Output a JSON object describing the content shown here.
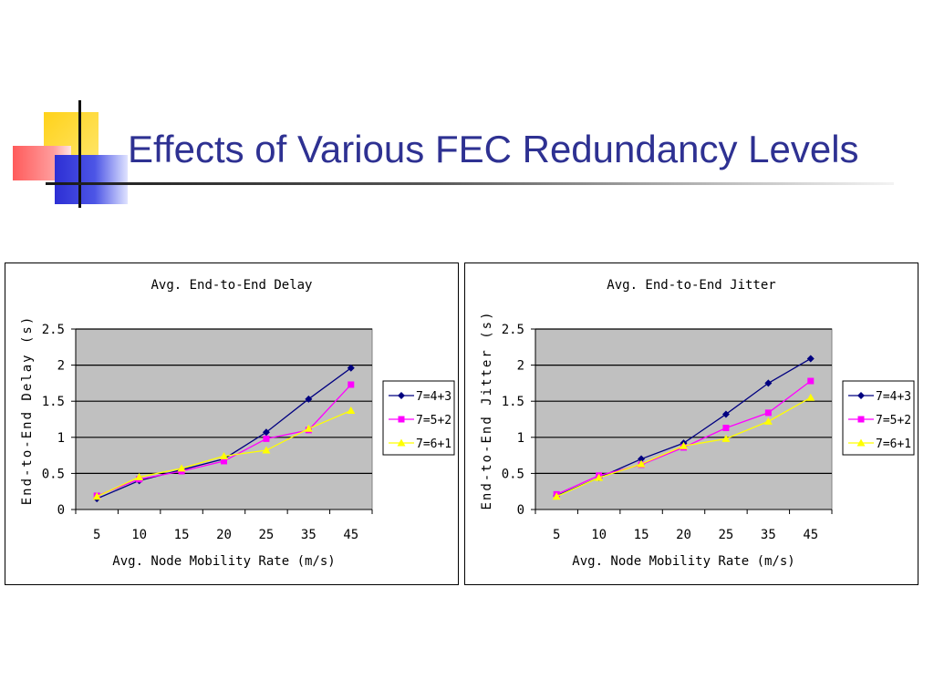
{
  "slide": {
    "title": "Effects of Various FEC Redundancy Levels"
  },
  "chart_data": [
    {
      "type": "line",
      "title": "Avg. End-to-End Delay",
      "xlabel": "Avg. Node Mobility Rate (m/s)",
      "ylabel": "End-to-End Delay (s)",
      "categories": [
        "5",
        "10",
        "15",
        "20",
        "25",
        "35",
        "45"
      ],
      "yticks": [
        "0",
        "0.5",
        "1",
        "1.5",
        "2",
        "2.5"
      ],
      "ylim": [
        0,
        2.5
      ],
      "grid": true,
      "legend": "right",
      "series": [
        {
          "name": "7=4+3",
          "color": "#000080",
          "marker": "diamond",
          "values": [
            0.15,
            0.4,
            0.55,
            0.7,
            1.07,
            1.53,
            1.96
          ]
        },
        {
          "name": "7=5+2",
          "color": "#ff00ff",
          "marker": "square",
          "values": [
            0.19,
            0.42,
            0.53,
            0.67,
            0.98,
            1.1,
            1.73
          ]
        },
        {
          "name": "7=6+1",
          "color": "#ffff00",
          "marker": "triangle",
          "values": [
            0.18,
            0.45,
            0.57,
            0.74,
            0.82,
            1.12,
            1.37
          ]
        }
      ]
    },
    {
      "type": "line",
      "title": "Avg. End-to-End Jitter",
      "xlabel": "Avg. Node Mobility Rate (m/s)",
      "ylabel": "End-to-End Jitter (s)",
      "categories": [
        "5",
        "10",
        "15",
        "20",
        "25",
        "35",
        "45"
      ],
      "yticks": [
        "0",
        "0.5",
        "1",
        "1.5",
        "2",
        "2.5"
      ],
      "ylim": [
        0,
        2.5
      ],
      "grid": true,
      "legend": "right",
      "series": [
        {
          "name": "7=4+3",
          "color": "#000080",
          "marker": "diamond",
          "values": [
            0.19,
            0.44,
            0.7,
            0.92,
            1.32,
            1.75,
            2.09
          ]
        },
        {
          "name": "7=5+2",
          "color": "#ff00ff",
          "marker": "square",
          "values": [
            0.21,
            0.47,
            0.62,
            0.86,
            1.13,
            1.34,
            1.78
          ]
        },
        {
          "name": "7=6+1",
          "color": "#ffff00",
          "marker": "triangle",
          "values": [
            0.18,
            0.44,
            0.63,
            0.88,
            0.98,
            1.22,
            1.55
          ]
        }
      ]
    }
  ]
}
